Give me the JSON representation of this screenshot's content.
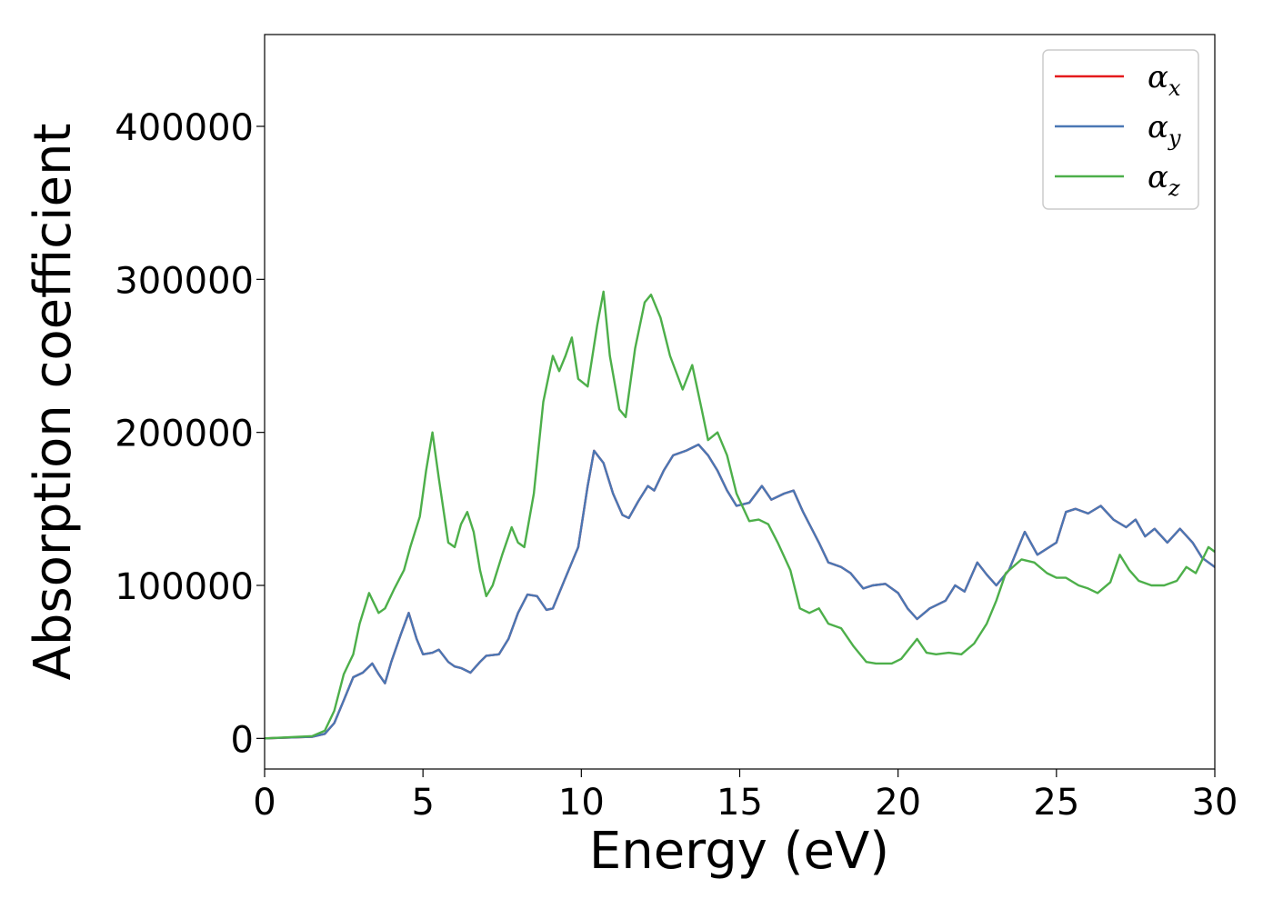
{
  "chart_data": {
    "type": "line",
    "title": "",
    "xlabel": "Energy (eV)",
    "ylabel": "Absorption coefficient",
    "xlim": [
      0,
      30
    ],
    "ylim": [
      -20000,
      460000
    ],
    "xticks": [
      0,
      5,
      10,
      15,
      20,
      25,
      30
    ],
    "xtick_labels": [
      "0",
      "5",
      "10",
      "15",
      "20",
      "25",
      "30"
    ],
    "yticks": [
      0,
      100000,
      200000,
      300000,
      400000
    ],
    "ytick_labels": [
      "0",
      "100000",
      "200000",
      "300000",
      "400000"
    ],
    "grid": false,
    "legend_position": "top-right",
    "series": [
      {
        "name": "α_x",
        "name_main": "α",
        "name_sub": "x",
        "color": "#e41a1c",
        "points": [
          [
            0,
            0
          ],
          [
            1.5,
            1000
          ],
          [
            1.9,
            3000
          ],
          [
            2.2,
            10000
          ],
          [
            2.5,
            25000
          ],
          [
            2.8,
            40000
          ],
          [
            3.1,
            43000
          ],
          [
            3.4,
            49000
          ],
          [
            3.6,
            42000
          ],
          [
            3.8,
            36000
          ],
          [
            4.0,
            50000
          ],
          [
            4.3,
            68000
          ],
          [
            4.55,
            82000
          ],
          [
            4.8,
            65000
          ],
          [
            5.0,
            55000
          ],
          [
            5.3,
            56000
          ],
          [
            5.5,
            58000
          ],
          [
            5.8,
            50000
          ],
          [
            6.0,
            47000
          ],
          [
            6.2,
            46000
          ],
          [
            6.5,
            43000
          ],
          [
            6.8,
            50000
          ],
          [
            7.0,
            54000
          ],
          [
            7.4,
            55000
          ],
          [
            7.7,
            65000
          ],
          [
            8.0,
            82000
          ],
          [
            8.3,
            94000
          ],
          [
            8.6,
            93000
          ],
          [
            8.9,
            84000
          ],
          [
            9.1,
            85000
          ],
          [
            9.5,
            105000
          ],
          [
            9.9,
            125000
          ],
          [
            10.2,
            165000
          ],
          [
            10.4,
            188000
          ],
          [
            10.7,
            180000
          ],
          [
            11.0,
            160000
          ],
          [
            11.3,
            146000
          ],
          [
            11.5,
            144000
          ],
          [
            11.8,
            155000
          ],
          [
            12.1,
            165000
          ],
          [
            12.3,
            162000
          ],
          [
            12.6,
            175000
          ],
          [
            12.9,
            185000
          ],
          [
            13.3,
            188000
          ],
          [
            13.7,
            192000
          ],
          [
            14.0,
            185000
          ],
          [
            14.3,
            175000
          ],
          [
            14.6,
            162000
          ],
          [
            14.9,
            152000
          ],
          [
            15.3,
            154000
          ],
          [
            15.7,
            165000
          ],
          [
            16.0,
            156000
          ],
          [
            16.4,
            160000
          ],
          [
            16.7,
            162000
          ],
          [
            17.0,
            148000
          ],
          [
            17.5,
            128000
          ],
          [
            17.8,
            115000
          ],
          [
            18.2,
            112000
          ],
          [
            18.5,
            108000
          ],
          [
            18.9,
            98000
          ],
          [
            19.2,
            100000
          ],
          [
            19.6,
            101000
          ],
          [
            20.0,
            95000
          ],
          [
            20.3,
            85000
          ],
          [
            20.6,
            78000
          ],
          [
            21.0,
            85000
          ],
          [
            21.5,
            90000
          ],
          [
            21.8,
            100000
          ],
          [
            22.1,
            96000
          ],
          [
            22.5,
            115000
          ],
          [
            22.8,
            107000
          ],
          [
            23.1,
            100000
          ],
          [
            23.5,
            110000
          ],
          [
            23.8,
            125000
          ],
          [
            24.0,
            135000
          ],
          [
            24.4,
            120000
          ],
          [
            25.0,
            128000
          ],
          [
            25.3,
            148000
          ],
          [
            25.6,
            150000
          ],
          [
            26.0,
            147000
          ],
          [
            26.4,
            152000
          ],
          [
            26.8,
            143000
          ],
          [
            27.2,
            138000
          ],
          [
            27.5,
            143000
          ],
          [
            27.8,
            132000
          ],
          [
            28.1,
            137000
          ],
          [
            28.5,
            128000
          ],
          [
            28.9,
            137000
          ],
          [
            29.3,
            128000
          ],
          [
            29.6,
            118000
          ],
          [
            30.0,
            112000
          ]
        ]
      },
      {
        "name": "α_y",
        "name_main": "α",
        "name_sub": "y",
        "color": "#4a77b4",
        "points": [
          [
            0,
            0
          ],
          [
            1.5,
            1000
          ],
          [
            1.9,
            3000
          ],
          [
            2.2,
            10000
          ],
          [
            2.5,
            25000
          ],
          [
            2.8,
            40000
          ],
          [
            3.1,
            43000
          ],
          [
            3.4,
            49000
          ],
          [
            3.6,
            42000
          ],
          [
            3.8,
            36000
          ],
          [
            4.0,
            50000
          ],
          [
            4.3,
            68000
          ],
          [
            4.55,
            82000
          ],
          [
            4.8,
            65000
          ],
          [
            5.0,
            55000
          ],
          [
            5.3,
            56000
          ],
          [
            5.5,
            58000
          ],
          [
            5.8,
            50000
          ],
          [
            6.0,
            47000
          ],
          [
            6.2,
            46000
          ],
          [
            6.5,
            43000
          ],
          [
            6.8,
            50000
          ],
          [
            7.0,
            54000
          ],
          [
            7.4,
            55000
          ],
          [
            7.7,
            65000
          ],
          [
            8.0,
            82000
          ],
          [
            8.3,
            94000
          ],
          [
            8.6,
            93000
          ],
          [
            8.9,
            84000
          ],
          [
            9.1,
            85000
          ],
          [
            9.5,
            105000
          ],
          [
            9.9,
            125000
          ],
          [
            10.2,
            165000
          ],
          [
            10.4,
            188000
          ],
          [
            10.7,
            180000
          ],
          [
            11.0,
            160000
          ],
          [
            11.3,
            146000
          ],
          [
            11.5,
            144000
          ],
          [
            11.8,
            155000
          ],
          [
            12.1,
            165000
          ],
          [
            12.3,
            162000
          ],
          [
            12.6,
            175000
          ],
          [
            12.9,
            185000
          ],
          [
            13.3,
            188000
          ],
          [
            13.7,
            192000
          ],
          [
            14.0,
            185000
          ],
          [
            14.3,
            175000
          ],
          [
            14.6,
            162000
          ],
          [
            14.9,
            152000
          ],
          [
            15.3,
            154000
          ],
          [
            15.7,
            165000
          ],
          [
            16.0,
            156000
          ],
          [
            16.4,
            160000
          ],
          [
            16.7,
            162000
          ],
          [
            17.0,
            148000
          ],
          [
            17.5,
            128000
          ],
          [
            17.8,
            115000
          ],
          [
            18.2,
            112000
          ],
          [
            18.5,
            108000
          ],
          [
            18.9,
            98000
          ],
          [
            19.2,
            100000
          ],
          [
            19.6,
            101000
          ],
          [
            20.0,
            95000
          ],
          [
            20.3,
            85000
          ],
          [
            20.6,
            78000
          ],
          [
            21.0,
            85000
          ],
          [
            21.5,
            90000
          ],
          [
            21.8,
            100000
          ],
          [
            22.1,
            96000
          ],
          [
            22.5,
            115000
          ],
          [
            22.8,
            107000
          ],
          [
            23.1,
            100000
          ],
          [
            23.5,
            110000
          ],
          [
            23.8,
            125000
          ],
          [
            24.0,
            135000
          ],
          [
            24.4,
            120000
          ],
          [
            25.0,
            128000
          ],
          [
            25.3,
            148000
          ],
          [
            25.6,
            150000
          ],
          [
            26.0,
            147000
          ],
          [
            26.4,
            152000
          ],
          [
            26.8,
            143000
          ],
          [
            27.2,
            138000
          ],
          [
            27.5,
            143000
          ],
          [
            27.8,
            132000
          ],
          [
            28.1,
            137000
          ],
          [
            28.5,
            128000
          ],
          [
            28.9,
            137000
          ],
          [
            29.3,
            128000
          ],
          [
            29.6,
            118000
          ],
          [
            30.0,
            112000
          ]
        ]
      },
      {
        "name": "α_z",
        "name_main": "α",
        "name_sub": "z",
        "color": "#4daf4a",
        "points": [
          [
            0,
            0
          ],
          [
            1.5,
            1500
          ],
          [
            1.9,
            5000
          ],
          [
            2.2,
            18000
          ],
          [
            2.5,
            42000
          ],
          [
            2.8,
            55000
          ],
          [
            3.0,
            75000
          ],
          [
            3.3,
            95000
          ],
          [
            3.6,
            82000
          ],
          [
            3.8,
            85000
          ],
          [
            4.1,
            98000
          ],
          [
            4.4,
            110000
          ],
          [
            4.6,
            125000
          ],
          [
            4.9,
            145000
          ],
          [
            5.1,
            175000
          ],
          [
            5.3,
            200000
          ],
          [
            5.5,
            170000
          ],
          [
            5.8,
            128000
          ],
          [
            6.0,
            125000
          ],
          [
            6.2,
            140000
          ],
          [
            6.4,
            148000
          ],
          [
            6.6,
            135000
          ],
          [
            6.8,
            110000
          ],
          [
            7.0,
            93000
          ],
          [
            7.2,
            100000
          ],
          [
            7.5,
            120000
          ],
          [
            7.8,
            138000
          ],
          [
            8.0,
            128000
          ],
          [
            8.2,
            125000
          ],
          [
            8.5,
            160000
          ],
          [
            8.8,
            220000
          ],
          [
            9.1,
            250000
          ],
          [
            9.3,
            240000
          ],
          [
            9.5,
            250000
          ],
          [
            9.7,
            262000
          ],
          [
            9.9,
            235000
          ],
          [
            10.2,
            230000
          ],
          [
            10.5,
            270000
          ],
          [
            10.7,
            292000
          ],
          [
            10.9,
            250000
          ],
          [
            11.2,
            215000
          ],
          [
            11.4,
            210000
          ],
          [
            11.7,
            255000
          ],
          [
            12.0,
            285000
          ],
          [
            12.2,
            290000
          ],
          [
            12.5,
            275000
          ],
          [
            12.8,
            250000
          ],
          [
            13.2,
            228000
          ],
          [
            13.5,
            244000
          ],
          [
            13.8,
            215000
          ],
          [
            14.0,
            195000
          ],
          [
            14.3,
            200000
          ],
          [
            14.6,
            185000
          ],
          [
            14.9,
            160000
          ],
          [
            15.3,
            142000
          ],
          [
            15.6,
            143000
          ],
          [
            15.9,
            140000
          ],
          [
            16.2,
            128000
          ],
          [
            16.6,
            110000
          ],
          [
            16.9,
            85000
          ],
          [
            17.2,
            82000
          ],
          [
            17.5,
            85000
          ],
          [
            17.8,
            75000
          ],
          [
            18.2,
            72000
          ],
          [
            18.6,
            60000
          ],
          [
            19.0,
            50000
          ],
          [
            19.3,
            49000
          ],
          [
            19.8,
            49000
          ],
          [
            20.1,
            52000
          ],
          [
            20.6,
            65000
          ],
          [
            20.9,
            56000
          ],
          [
            21.2,
            55000
          ],
          [
            21.6,
            56000
          ],
          [
            22.0,
            55000
          ],
          [
            22.4,
            62000
          ],
          [
            22.8,
            75000
          ],
          [
            23.1,
            90000
          ],
          [
            23.4,
            108000
          ],
          [
            23.9,
            117000
          ],
          [
            24.3,
            115000
          ],
          [
            24.7,
            108000
          ],
          [
            25.0,
            105000
          ],
          [
            25.3,
            105000
          ],
          [
            25.7,
            100000
          ],
          [
            26.0,
            98000
          ],
          [
            26.3,
            95000
          ],
          [
            26.7,
            102000
          ],
          [
            27.0,
            120000
          ],
          [
            27.3,
            110000
          ],
          [
            27.6,
            103000
          ],
          [
            28.0,
            100000
          ],
          [
            28.4,
            100000
          ],
          [
            28.8,
            103000
          ],
          [
            29.1,
            112000
          ],
          [
            29.4,
            108000
          ],
          [
            29.8,
            125000
          ],
          [
            30.0,
            122000
          ]
        ]
      }
    ]
  }
}
